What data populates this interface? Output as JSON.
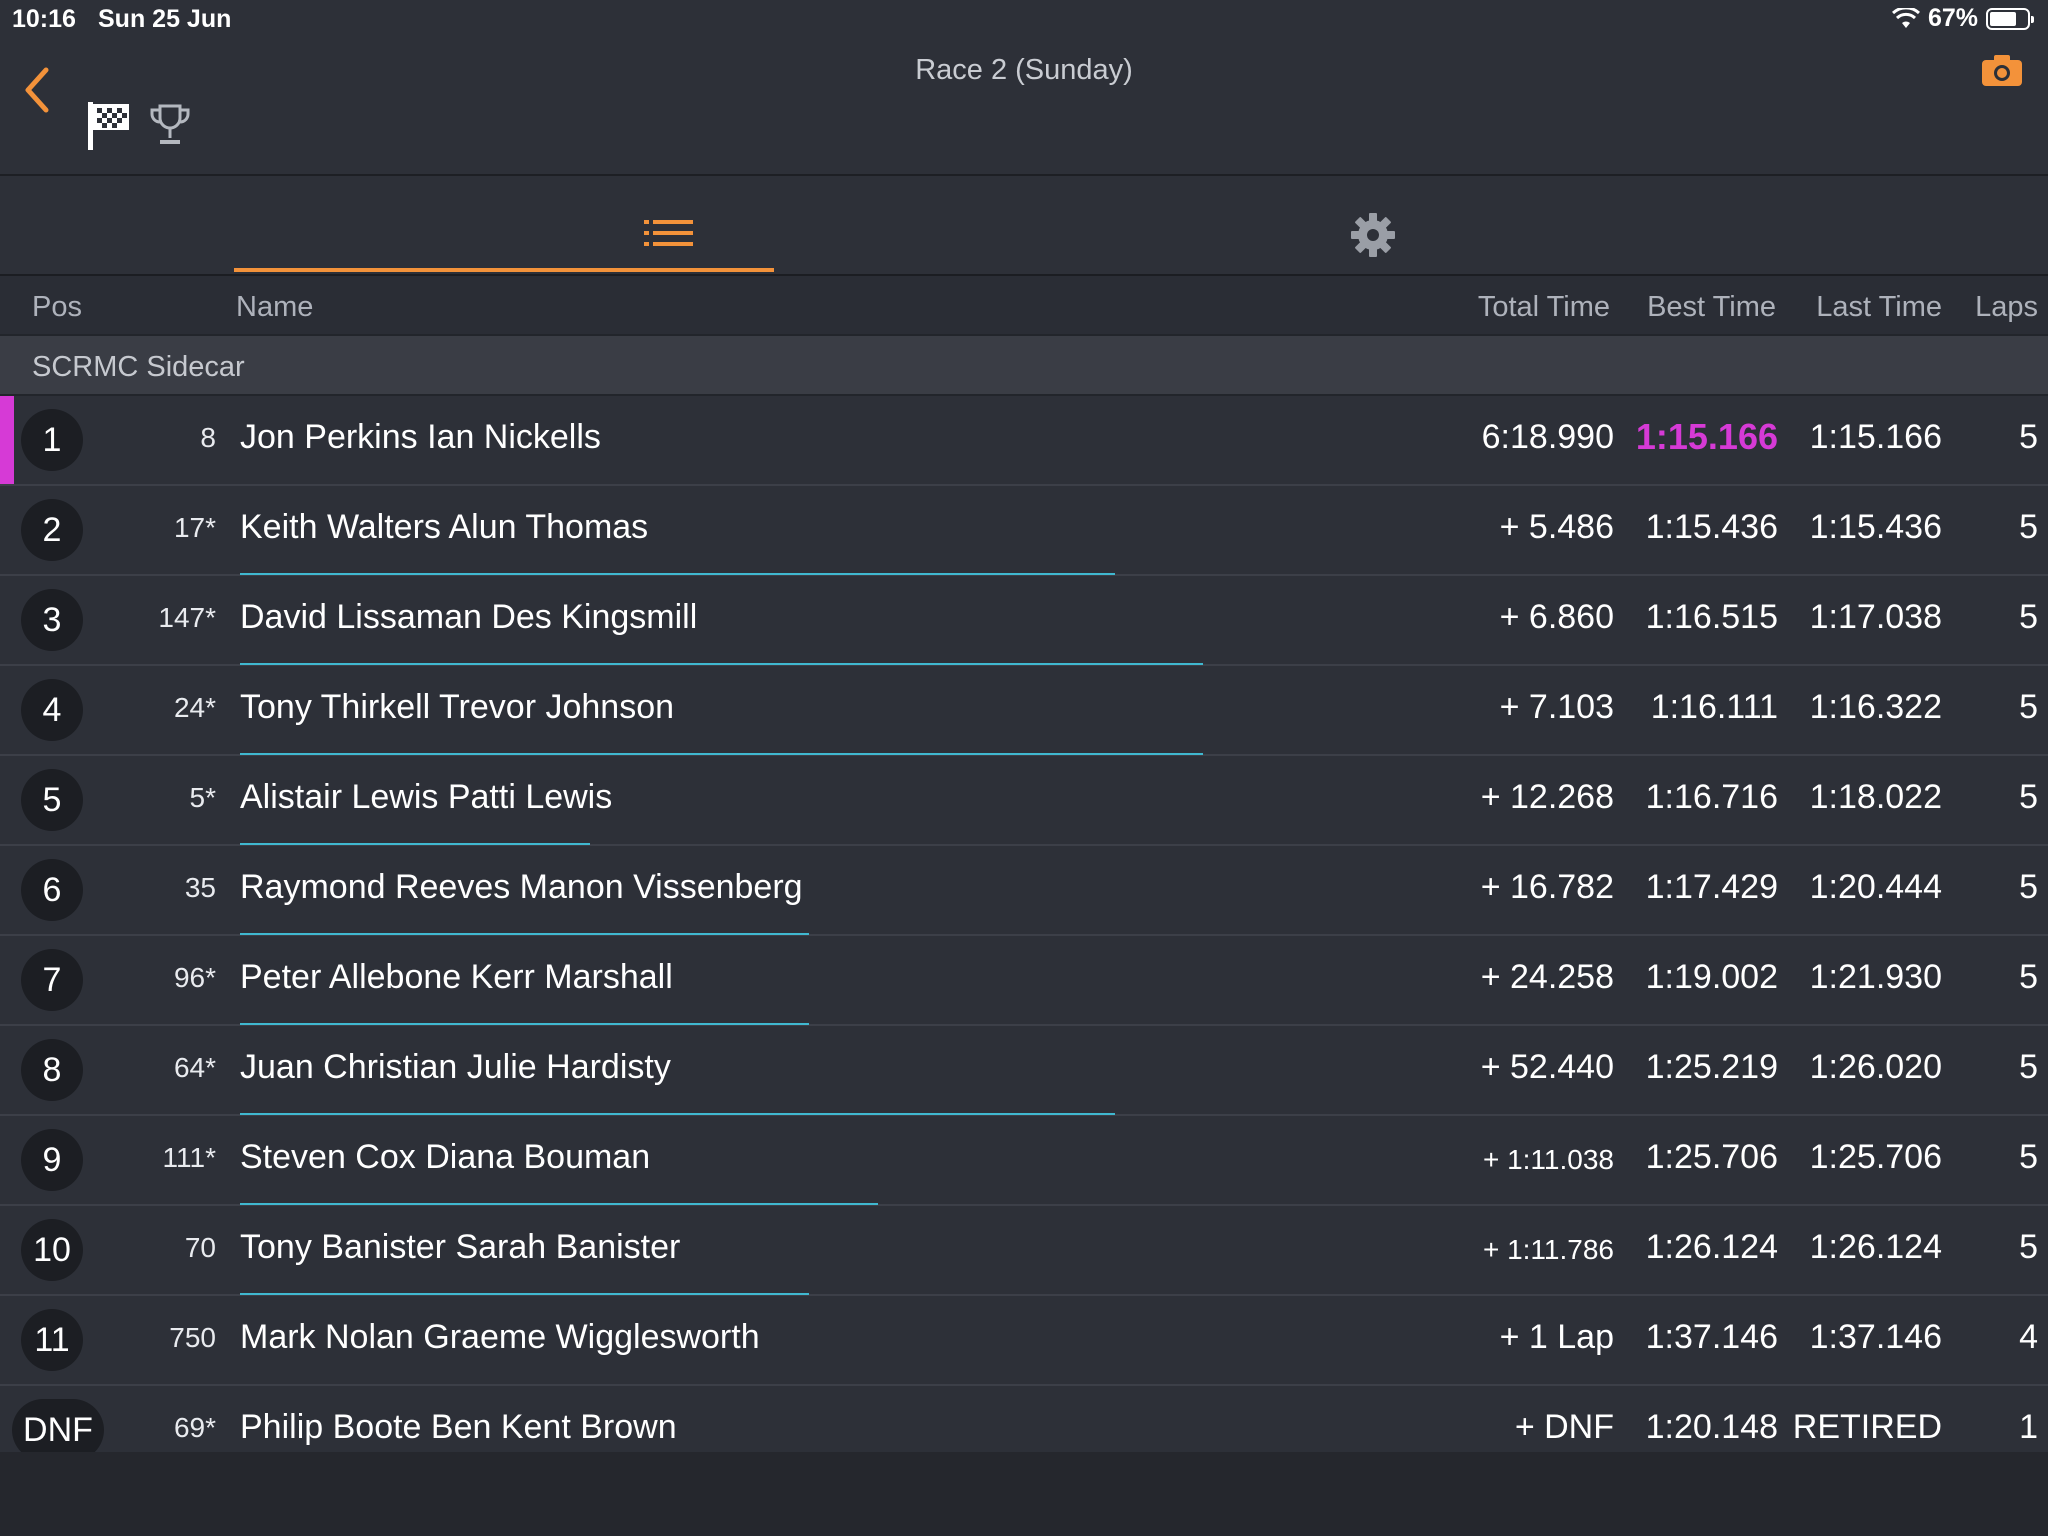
{
  "status_bar": {
    "time": "10:16",
    "date": "Sun 25 Jun",
    "battery": "67%"
  },
  "header": {
    "title": "Race 2 (Sunday)"
  },
  "icons": {
    "back": "chevron-left-icon",
    "flag": "checkered-flag-icon",
    "trophy": "trophy-icon",
    "camera": "camera-icon",
    "list": "list-icon",
    "settings": "gear-icon"
  },
  "colors": {
    "accent": "#f3923a",
    "fastest": "#d63ad6",
    "gap_bar": "#40b8d0"
  },
  "columns": {
    "pos": "Pos",
    "name": "Name",
    "total": "Total Time",
    "best": "Best Time",
    "last": "Last Time",
    "laps": "Laps"
  },
  "group": "SCRMC Sidecar",
  "results": [
    {
      "pos": "1",
      "num": "8",
      "name": "Jon Perkins Ian Nickells",
      "total": "6:18.990",
      "best": "1:15.166",
      "last": "1:15.166",
      "laps": "5",
      "fastest": true,
      "gap_fraction": 0
    },
    {
      "pos": "2",
      "num": "17*",
      "name": "Keith Walters Alun Thomas",
      "total": "+ 5.486",
      "best": "1:15.436",
      "last": "1:15.436",
      "laps": "5",
      "gap_fraction": 0.7
    },
    {
      "pos": "3",
      "num": "147*",
      "name": "David Lissaman Des Kingsmill",
      "total": "+ 6.860",
      "best": "1:16.515",
      "last": "1:17.038",
      "laps": "5",
      "gap_fraction": 0.77
    },
    {
      "pos": "4",
      "num": "24*",
      "name": "Tony Thirkell Trevor Johnson",
      "total": "+ 7.103",
      "best": "1:16.111",
      "last": "1:16.322",
      "laps": "5",
      "gap_fraction": 0.77
    },
    {
      "pos": "5",
      "num": "5*",
      "name": "Alistair Lewis Patti Lewis",
      "total": "+ 12.268",
      "best": "1:16.716",
      "last": "1:18.022",
      "laps": "5",
      "gap_fraction": 0.28
    },
    {
      "pos": "6",
      "num": "35",
      "name": "Raymond Reeves Manon Vissenberg",
      "total": "+ 16.782",
      "best": "1:17.429",
      "last": "1:20.444",
      "laps": "5",
      "gap_fraction": 0.455
    },
    {
      "pos": "7",
      "num": "96*",
      "name": "Peter Allebone Kerr Marshall",
      "total": "+ 24.258",
      "best": "1:19.002",
      "last": "1:21.930",
      "laps": "5",
      "gap_fraction": 0.455
    },
    {
      "pos": "8",
      "num": "64*",
      "name": "Juan Christian Julie Hardisty",
      "total": "+ 52.440",
      "best": "1:25.219",
      "last": "1:26.020",
      "laps": "5",
      "gap_fraction": 0.7
    },
    {
      "pos": "9",
      "num": "111*",
      "name": "Steven Cox Diana Bouman",
      "total": "+ 1:11.038",
      "best": "1:25.706",
      "last": "1:25.706",
      "laps": "5",
      "gap_fraction": 0.51,
      "small_total": true
    },
    {
      "pos": "10",
      "num": "70",
      "name": "Tony Banister Sarah Banister",
      "total": "+ 1:11.786",
      "best": "1:26.124",
      "last": "1:26.124",
      "laps": "5",
      "gap_fraction": 0.455,
      "small_total": true
    },
    {
      "pos": "11",
      "num": "750",
      "name": "Mark Nolan Graeme Wigglesworth",
      "total": "+ 1 Lap",
      "best": "1:37.146",
      "last": "1:37.146",
      "laps": "4",
      "gap_fraction": 0
    },
    {
      "pos": "DNF",
      "num": "69*",
      "name": "Philip Boote Ben Kent Brown",
      "total": "+ DNF",
      "best": "1:20.148",
      "last": "RETIRED",
      "laps": "1",
      "gap_fraction": 0
    }
  ]
}
